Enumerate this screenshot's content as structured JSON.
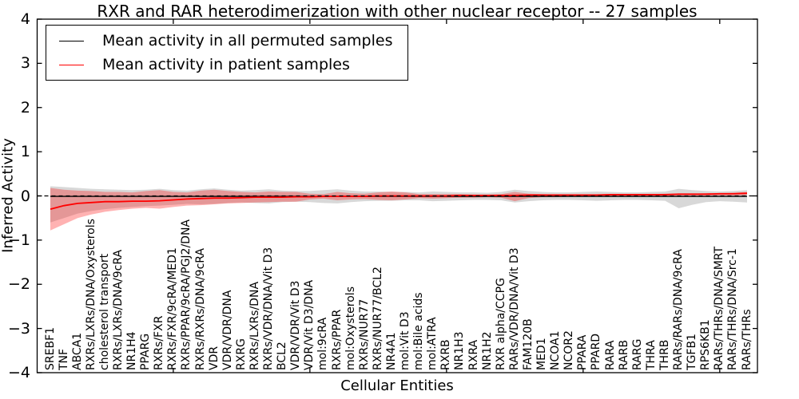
{
  "figure": {
    "title": "RXR and RAR heterodimerization with other nuclear receptor -- 27 samples",
    "xlabel": "Cellular Entities",
    "ylabel": "Inferred Activity"
  },
  "legend": {
    "entries": [
      {
        "label": "Mean activity in all permuted samples",
        "color": "#000000"
      },
      {
        "label": "Mean activity in patient samples",
        "color": "#ff0000"
      }
    ]
  },
  "chart_data": {
    "type": "line",
    "title": "RXR and RAR heterodimerization with other nuclear receptor -- 27 samples",
    "xlabel": "Cellular Entities",
    "ylabel": "Inferred Activity",
    "ylim": [
      -4,
      4
    ],
    "yticks": [
      4,
      3,
      2,
      1,
      0,
      -1,
      -2,
      -3,
      -4
    ],
    "ytick_labels": [
      "4",
      "3",
      "2",
      "1",
      "0",
      "−1",
      "−2",
      "−3",
      "−4"
    ],
    "grid": false,
    "legend_position": "upper left",
    "zero_line": {
      "style": "dashed",
      "color": "#000000",
      "y": 0
    },
    "categories": [
      "SREBF1",
      "TNF",
      "ABCA1",
      "RXRs/LXRs/DNA/Oxysterols",
      "cholesterol transport",
      "RXRs/LXRs/DNA/9cRA",
      "NR1H4",
      "PPARG",
      "RXRs/FXR",
      "RXRs/FXR/9cRA/MED1",
      "RXRs/PPAR/9cRA/PGJ2/DNA",
      "RXRs/RXRs/DNA/9cRA",
      "VDR",
      "VDR/VDR/DNA",
      "RXRG",
      "RXRs/LXRs/DNA",
      "RXRs/VDR/DNA/Vit D3",
      "BCL2",
      "VDR/VDR/Vit D3",
      "VDR/Vit D3/DNA",
      "mol:9cRA",
      "RXRs/PPAR",
      "mol:Oxysterols",
      "RXRs/NUR77",
      "RXRs/NUR77/BCL2",
      "NR4A1",
      "mol:Vit D3",
      "mol:Bile acids",
      "mol:ATRA",
      "RXRB",
      "NR1H3",
      "RXRA",
      "NR1H2",
      "RXR alpha/CCPG",
      "RARs/VDR/DNA/Vit D3",
      "FAM120B",
      "MED1",
      "NCOA1",
      "NCOR2",
      "PPARA",
      "PPARD",
      "RARA",
      "RARB",
      "RARG",
      "THRA",
      "THRB",
      "RARs/RARs/DNA/9cRA",
      "TGFB1",
      "RPS6KB1",
      "RARs/THRs/DNA/SMRT",
      "RARs/THRs/DNA/Src-1",
      "RARs/THRs"
    ],
    "series": [
      {
        "name": "Mean activity in all permuted samples",
        "color": "#000000",
        "values": [
          -0.01,
          -0.01,
          -0.01,
          -0.01,
          -0.01,
          -0.01,
          -0.01,
          -0.01,
          -0.01,
          -0.01,
          -0.01,
          -0.01,
          -0.01,
          -0.01,
          -0.01,
          -0.01,
          -0.01,
          -0.01,
          -0.01,
          -0.01,
          -0.01,
          -0.01,
          -0.01,
          -0.01,
          -0.01,
          -0.01,
          -0.01,
          -0.01,
          -0.01,
          -0.01,
          -0.01,
          -0.01,
          -0.01,
          -0.01,
          -0.01,
          -0.01,
          -0.01,
          -0.01,
          -0.01,
          -0.01,
          -0.01,
          -0.01,
          -0.01,
          -0.01,
          -0.01,
          -0.01,
          -0.01,
          -0.01,
          -0.01,
          -0.01,
          -0.01,
          -0.01
        ]
      },
      {
        "name": "Mean activity in patient samples",
        "color": "#ff0000",
        "values": [
          -0.3,
          -0.22,
          -0.17,
          -0.15,
          -0.13,
          -0.13,
          -0.12,
          -0.12,
          -0.11,
          -0.09,
          -0.07,
          -0.06,
          -0.05,
          -0.05,
          -0.04,
          -0.03,
          -0.03,
          -0.03,
          -0.02,
          -0.02,
          -0.01,
          -0.01,
          -0.01,
          -0.01,
          0.0,
          0.0,
          0.0,
          0.0,
          0.0,
          0.0,
          0.01,
          0.01,
          0.01,
          0.01,
          0.01,
          0.02,
          0.02,
          0.02,
          0.02,
          0.02,
          0.02,
          0.03,
          0.03,
          0.03,
          0.03,
          0.03,
          0.04,
          0.04,
          0.04,
          0.05,
          0.05,
          0.06
        ]
      }
    ],
    "bands": [
      {
        "name": "permuted-samples-range",
        "color": "#999999",
        "opacity": 0.38,
        "upper": [
          0.22,
          0.2,
          0.18,
          0.16,
          0.15,
          0.14,
          0.13,
          0.14,
          0.16,
          0.13,
          0.12,
          0.15,
          0.17,
          0.14,
          0.12,
          0.13,
          0.15,
          0.12,
          0.11,
          0.11,
          0.13,
          0.15,
          0.12,
          0.1,
          0.1,
          0.09,
          0.09,
          0.08,
          0.1,
          0.09,
          0.08,
          0.08,
          0.07,
          0.09,
          0.14,
          0.11,
          0.09,
          0.08,
          0.08,
          0.09,
          0.1,
          0.09,
          0.08,
          0.08,
          0.09,
          0.1,
          0.16,
          0.13,
          0.11,
          0.1,
          0.11,
          0.13
        ],
        "lower": [
          -0.6,
          -0.5,
          -0.4,
          -0.34,
          -0.3,
          -0.27,
          -0.25,
          -0.23,
          -0.22,
          -0.2,
          -0.18,
          -0.19,
          -0.18,
          -0.16,
          -0.15,
          -0.16,
          -0.17,
          -0.14,
          -0.13,
          -0.14,
          -0.16,
          -0.17,
          -0.14,
          -0.12,
          -0.11,
          -0.11,
          -0.1,
          -0.1,
          -0.12,
          -0.11,
          -0.1,
          -0.09,
          -0.09,
          -0.1,
          -0.15,
          -0.12,
          -0.1,
          -0.09,
          -0.09,
          -0.1,
          -0.11,
          -0.1,
          -0.09,
          -0.09,
          -0.1,
          -0.11,
          -0.28,
          -0.2,
          -0.14,
          -0.12,
          -0.13,
          -0.15
        ]
      },
      {
        "name": "patient-samples-range",
        "color": "#ff0000",
        "opacity": 0.3,
        "upper": [
          0.18,
          0.14,
          0.12,
          0.11,
          0.09,
          0.09,
          0.08,
          0.11,
          0.13,
          0.09,
          0.08,
          0.12,
          0.14,
          0.11,
          0.09,
          0.08,
          0.1,
          0.09,
          0.09,
          0.05,
          0.04,
          0.09,
          0.06,
          0.05,
          0.08,
          0.1,
          0.08,
          0.04,
          0.04,
          0.04,
          0.04,
          0.03,
          0.03,
          0.04,
          0.09,
          0.05,
          0.04,
          0.03,
          0.03,
          0.03,
          0.03,
          0.04,
          0.04,
          0.04,
          0.04,
          0.05,
          0.05,
          0.05,
          0.06,
          0.06,
          0.07,
          0.09
        ],
        "lower": [
          -0.78,
          -0.64,
          -0.5,
          -0.42,
          -0.36,
          -0.32,
          -0.29,
          -0.27,
          -0.29,
          -0.25,
          -0.22,
          -0.21,
          -0.19,
          -0.17,
          -0.16,
          -0.15,
          -0.14,
          -0.13,
          -0.13,
          -0.08,
          -0.06,
          -0.1,
          -0.08,
          -0.07,
          -0.09,
          -0.1,
          -0.08,
          -0.05,
          -0.06,
          -0.05,
          -0.04,
          -0.04,
          -0.03,
          -0.04,
          -0.12,
          -0.05,
          -0.03,
          -0.03,
          -0.02,
          -0.02,
          -0.02,
          -0.02,
          -0.01,
          -0.01,
          -0.01,
          -0.01,
          0.0,
          0.0,
          0.0,
          0.01,
          0.01,
          0.02
        ]
      }
    ]
  }
}
